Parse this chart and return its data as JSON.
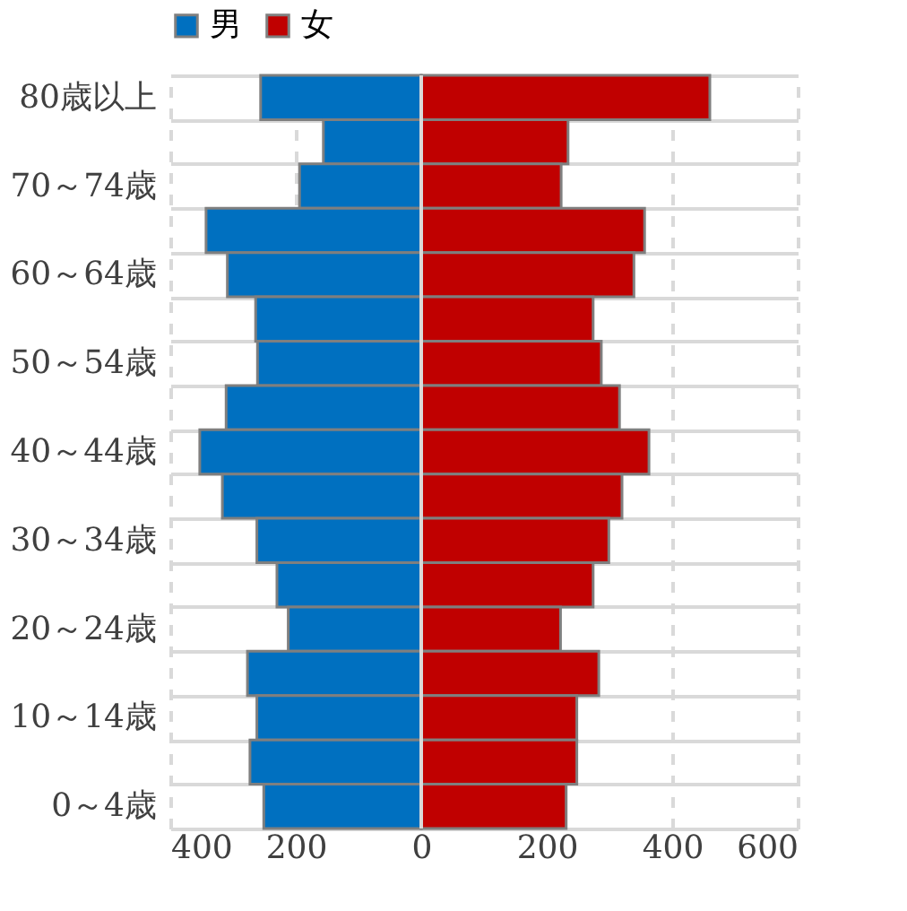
{
  "chart_data": {
    "type": "bar",
    "orientation": "horizontal",
    "categories": [
      "80歳以上",
      null,
      "70～74歳",
      null,
      "60～64歳",
      null,
      "50～54歳",
      null,
      "40～44歳",
      null,
      "30～34歳",
      null,
      "20～24歳",
      null,
      "10～14歳",
      null,
      "0～4歳"
    ],
    "series": [
      {
        "name": "男",
        "color": "#0070c0",
        "values": [
          -256,
          -156,
          -194,
          -343,
          -309,
          -264,
          -261,
          -311,
          -353,
          -317,
          -262,
          -230,
          -212,
          -277,
          -262,
          -273,
          -251
        ]
      },
      {
        "name": "女",
        "color": "#c00000",
        "values": [
          460,
          234,
          223,
          356,
          339,
          274,
          287,
          316,
          363,
          320,
          299,
          274,
          222,
          283,
          248,
          248,
          231
        ]
      }
    ],
    "xlim": [
      -400,
      600
    ],
    "xticks": [
      {
        "value": -400,
        "label": "400"
      },
      {
        "value": -200,
        "label": "200"
      },
      0,
      200,
      400,
      600
    ],
    "stacked": true,
    "grid": true,
    "legend": "top"
  }
}
